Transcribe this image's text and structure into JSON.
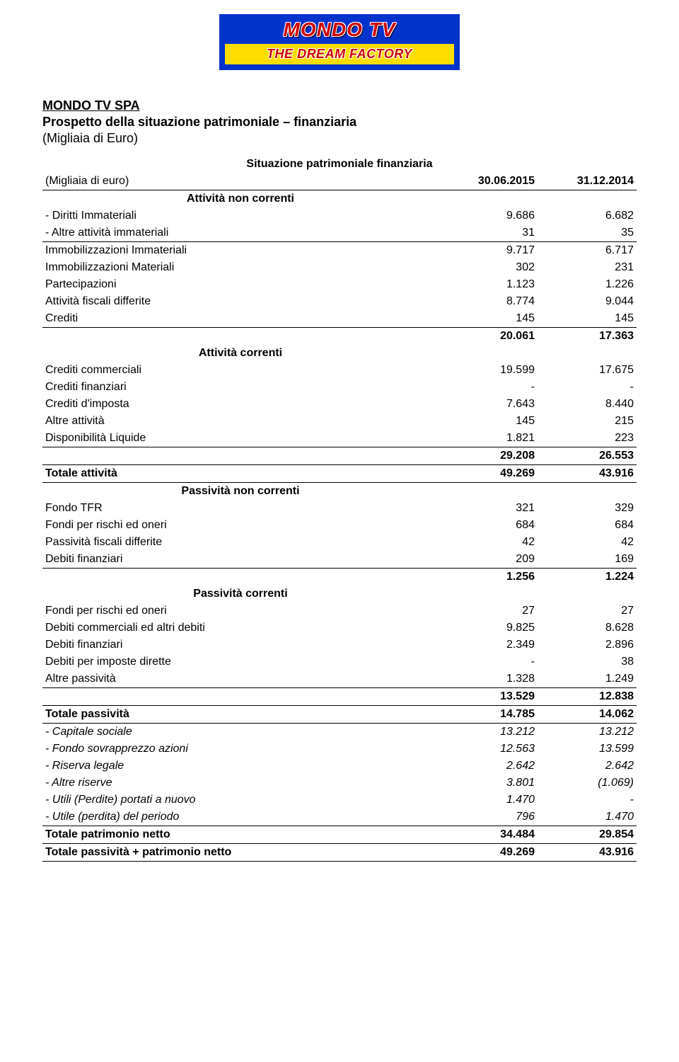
{
  "logo": {
    "top": "MONDO TV",
    "bottom": "THE DREAM FACTORY"
  },
  "doc": {
    "title": "MONDO TV SPA",
    "subtitle": "Prospetto della situazione patrimoniale – finanziaria",
    "paren": "(Migliaia di Euro)"
  },
  "header": {
    "center_title": "Situazione patrimoniale finanziaria",
    "col0": "(Migliaia di euro)",
    "col1": "30.06.2015",
    "col2": "31.12.2014"
  },
  "sections": {
    "anc": "Attività non correnti",
    "ac": "Attività correnti",
    "pnc": "Passività non correnti",
    "pc": "Passività correnti"
  },
  "rows": {
    "diritti": {
      "l": " - Diritti Immateriali",
      "v1": "9.686",
      "v2": "6.682"
    },
    "altre_imm": {
      "l": " - Altre attività immateriali",
      "v1": "31",
      "v2": "35"
    },
    "immobil_imm": {
      "l": "Immobilizzazioni Immateriali",
      "v1": "9.717",
      "v2": "6.717"
    },
    "immobil_mat": {
      "l": "Immobilizzazioni Materiali",
      "v1": "302",
      "v2": "231"
    },
    "partecip": {
      "l": "Partecipazioni",
      "v1": "1.123",
      "v2": "1.226"
    },
    "att_fisc": {
      "l": "Attività fiscali differite",
      "v1": "8.774",
      "v2": "9.044"
    },
    "crediti": {
      "l": "Crediti",
      "v1": "145",
      "v2": "145"
    },
    "anc_tot": {
      "l": "",
      "v1": "20.061",
      "v2": "17.363"
    },
    "cred_comm": {
      "l": "Crediti commerciali",
      "v1": "19.599",
      "v2": "17.675"
    },
    "cred_fin": {
      "l": "Crediti finanziari",
      "v1": "-",
      "v2": "-"
    },
    "cred_imp": {
      "l": "Crediti d'imposta",
      "v1": "7.643",
      "v2": "8.440"
    },
    "altre_att": {
      "l": "Altre attività",
      "v1": "145",
      "v2": "215"
    },
    "disp_liq": {
      "l": "Disponibilità Liquide",
      "v1": "1.821",
      "v2": "223"
    },
    "ac_tot": {
      "l": "",
      "v1": "29.208",
      "v2": "26.553"
    },
    "tot_att": {
      "l": "Totale attività",
      "v1": "49.269",
      "v2": "43.916"
    },
    "fondo_tfr": {
      "l": "Fondo TFR",
      "v1": "321",
      "v2": "329"
    },
    "fondi_ro1": {
      "l": "Fondi per rischi ed oneri",
      "v1": "684",
      "v2": "684"
    },
    "pass_fisc": {
      "l": "Passività fiscali differite",
      "v1": "42",
      "v2": "42"
    },
    "deb_fin1": {
      "l": "Debiti finanziari",
      "v1": "209",
      "v2": "169"
    },
    "pnc_tot": {
      "l": "",
      "v1": "1.256",
      "v2": "1.224"
    },
    "fondi_ro2": {
      "l": "Fondi per rischi ed oneri",
      "v1": "27",
      "v2": "27"
    },
    "deb_comm": {
      "l": "Debiti commerciali ed altri debiti",
      "v1": "9.825",
      "v2": "8.628"
    },
    "deb_fin2": {
      "l": "Debiti finanziari",
      "v1": "2.349",
      "v2": "2.896"
    },
    "deb_imp": {
      "l": "Debiti per imposte dirette",
      "v1": "-",
      "v2": "38"
    },
    "altre_pass": {
      "l": "Altre passività",
      "v1": "1.328",
      "v2": "1.249"
    },
    "pc_tot": {
      "l": "",
      "v1": "13.529",
      "v2": "12.838"
    },
    "tot_pass": {
      "l": "Totale passività",
      "v1": "14.785",
      "v2": "14.062"
    },
    "cap_soc": {
      "l": " - Capitale sociale",
      "v1": "13.212",
      "v2": "13.212"
    },
    "sovrap": {
      "l": " - Fondo sovrapprezzo azioni",
      "v1": "12.563",
      "v2": "13.599"
    },
    "ris_leg": {
      "l": " - Riserva legale",
      "v1": "2.642",
      "v2": "2.642"
    },
    "altre_ris": {
      "l": " - Altre riserve",
      "v1": "3.801",
      "v2": "(1.069)"
    },
    "utili_nuovo": {
      "l": " - Utili (Perdite) portati a nuovo",
      "v1": "1.470",
      "v2": "-"
    },
    "utile_per": {
      "l": " - Utile (perdita) del periodo",
      "v1": "796",
      "v2": "1.470"
    },
    "tot_patr": {
      "l": "Totale patrimonio netto",
      "v1": "34.484",
      "v2": "29.854"
    },
    "tot_pp": {
      "l": "Totale passività + patrimonio netto",
      "v1": "49.269",
      "v2": "43.916"
    }
  }
}
